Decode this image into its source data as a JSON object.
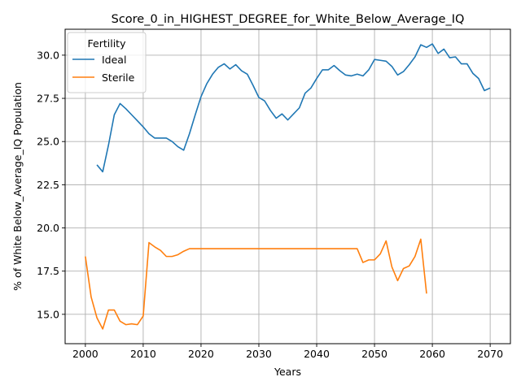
{
  "chart_data": {
    "type": "line",
    "title": "Score_0_in_HIGHEST_DEGREE_for_White_Below_Average_IQ",
    "xlabel": "Years",
    "ylabel": "% of White Below_Average_IQ Population",
    "xlim": [
      1996.5,
      2073.5
    ],
    "ylim": [
      13.3,
      31.5
    ],
    "xticks": [
      2000,
      2010,
      2020,
      2030,
      2040,
      2050,
      2060,
      2070
    ],
    "yticks": [
      15.0,
      17.5,
      20.0,
      22.5,
      25.0,
      27.5,
      30.0
    ],
    "xtick_labels": [
      "2000",
      "2010",
      "2020",
      "2030",
      "2040",
      "2050",
      "2060",
      "2070"
    ],
    "ytick_labels": [
      "15.0",
      "17.5",
      "20.0",
      "22.5",
      "25.0",
      "27.5",
      "30.0"
    ],
    "grid": true,
    "legend": {
      "title": "Fertility",
      "position": "top-left"
    },
    "series": [
      {
        "name": "Ideal",
        "color": "#1f77b4",
        "x": [
          2002,
          2003,
          2004,
          2005,
          2006,
          2007,
          2008,
          2009,
          2010,
          2011,
          2012,
          2013,
          2014,
          2015,
          2016,
          2017,
          2018,
          2019,
          2020,
          2021,
          2022,
          2023,
          2024,
          2025,
          2026,
          2027,
          2028,
          2029,
          2030,
          2031,
          2032,
          2033,
          2034,
          2035,
          2036,
          2037,
          2038,
          2039,
          2040,
          2041,
          2042,
          2043,
          2044,
          2045,
          2046,
          2047,
          2048,
          2049,
          2050,
          2051,
          2052,
          2053,
          2054,
          2055,
          2056,
          2057,
          2058,
          2059,
          2060,
          2061,
          2062,
          2063,
          2064,
          2065,
          2066,
          2067,
          2068,
          2069,
          2070
        ],
        "y": [
          23.65,
          23.25,
          24.8,
          26.55,
          27.2,
          26.9,
          26.55,
          26.2,
          25.85,
          25.45,
          25.2,
          25.2,
          25.2,
          25.0,
          24.7,
          24.5,
          25.45,
          26.55,
          27.6,
          28.35,
          28.9,
          29.3,
          29.5,
          29.2,
          29.45,
          29.1,
          28.9,
          28.25,
          27.55,
          27.35,
          26.8,
          26.35,
          26.6,
          26.25,
          26.6,
          26.95,
          27.8,
          28.1,
          28.65,
          29.15,
          29.15,
          29.4,
          29.1,
          28.85,
          28.8,
          28.9,
          28.8,
          29.15,
          29.75,
          29.7,
          29.65,
          29.35,
          28.85,
          29.05,
          29.45,
          29.9,
          30.6,
          30.45,
          30.65,
          30.1,
          30.35,
          29.85,
          29.9,
          29.5,
          29.5,
          28.95,
          28.65,
          27.95,
          28.1
        ]
      },
      {
        "name": "Sterile",
        "color": "#ff7f0e",
        "x": [
          2000,
          2001,
          2002,
          2003,
          2004,
          2005,
          2006,
          2007,
          2008,
          2009,
          2010,
          2011,
          2012,
          2013,
          2014,
          2015,
          2016,
          2017,
          2018,
          2019,
          2020,
          2021,
          2022,
          2023,
          2024,
          2025,
          2026,
          2027,
          2028,
          2029,
          2030,
          2031,
          2032,
          2033,
          2034,
          2035,
          2036,
          2037,
          2038,
          2039,
          2040,
          2041,
          2042,
          2043,
          2044,
          2045,
          2046,
          2047,
          2048,
          2049,
          2050,
          2051,
          2052,
          2053,
          2054,
          2055,
          2056,
          2057,
          2058,
          2059
        ],
        "y": [
          18.35,
          16.0,
          14.8,
          14.15,
          15.25,
          15.25,
          14.6,
          14.4,
          14.45,
          14.4,
          14.9,
          19.15,
          18.9,
          18.7,
          18.35,
          18.35,
          18.45,
          18.65,
          18.8,
          18.8,
          18.8,
          18.8,
          18.8,
          18.8,
          18.8,
          18.8,
          18.8,
          18.8,
          18.8,
          18.8,
          18.8,
          18.8,
          18.8,
          18.8,
          18.8,
          18.8,
          18.8,
          18.8,
          18.8,
          18.8,
          18.8,
          18.8,
          18.8,
          18.8,
          18.8,
          18.8,
          18.8,
          18.8,
          18.0,
          18.15,
          18.15,
          18.5,
          19.25,
          17.75,
          16.95,
          17.65,
          17.8,
          18.35,
          19.35,
          16.2
        ]
      }
    ]
  }
}
